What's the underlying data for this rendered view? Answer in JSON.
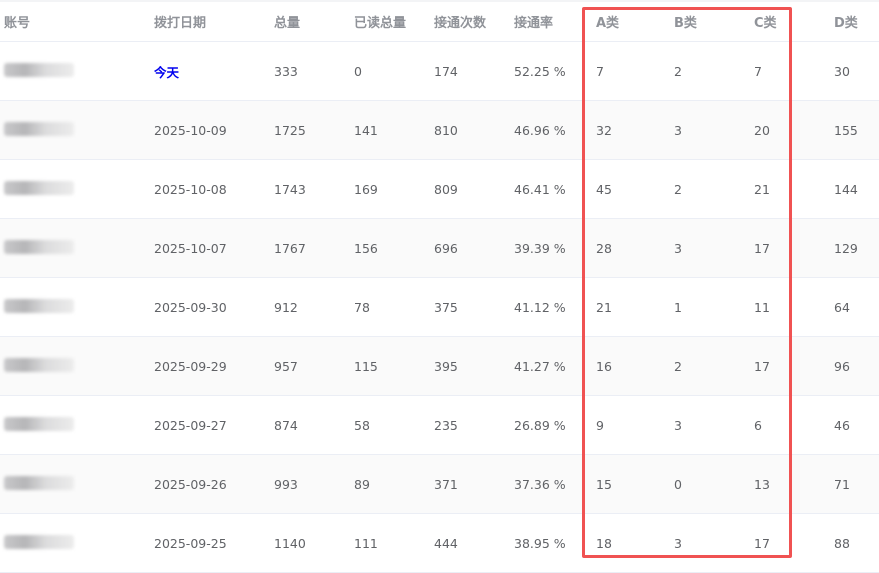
{
  "headers": [
    "账号",
    "拨打日期",
    "总量",
    "已读总量",
    "接通次数",
    "接通率",
    "A类",
    "B类",
    "C类",
    "D类"
  ],
  "rows": [
    {
      "date": "今天",
      "total": "333",
      "read": "0",
      "connected": "174",
      "rate": "52.25 %",
      "a": "7",
      "b": "2",
      "c": "7",
      "d": "30"
    },
    {
      "date": "2025-10-09",
      "total": "1725",
      "read": "141",
      "connected": "810",
      "rate": "46.96 %",
      "a": "32",
      "b": "3",
      "c": "20",
      "d": "155"
    },
    {
      "date": "2025-10-08",
      "total": "1743",
      "read": "169",
      "connected": "809",
      "rate": "46.41 %",
      "a": "45",
      "b": "2",
      "c": "21",
      "d": "144"
    },
    {
      "date": "2025-10-07",
      "total": "1767",
      "read": "156",
      "connected": "696",
      "rate": "39.39 %",
      "a": "28",
      "b": "3",
      "c": "17",
      "d": "129"
    },
    {
      "date": "2025-09-30",
      "total": "912",
      "read": "78",
      "connected": "375",
      "rate": "41.12 %",
      "a": "21",
      "b": "1",
      "c": "11",
      "d": "64"
    },
    {
      "date": "2025-09-29",
      "total": "957",
      "read": "115",
      "connected": "395",
      "rate": "41.27 %",
      "a": "16",
      "b": "2",
      "c": "17",
      "d": "96"
    },
    {
      "date": "2025-09-27",
      "total": "874",
      "read": "58",
      "connected": "235",
      "rate": "26.89 %",
      "a": "9",
      "b": "3",
      "c": "6",
      "d": "46"
    },
    {
      "date": "2025-09-26",
      "total": "993",
      "read": "89",
      "connected": "371",
      "rate": "37.36 %",
      "a": "15",
      "b": "0",
      "c": "13",
      "d": "71"
    },
    {
      "date": "2025-09-25",
      "total": "1140",
      "read": "111",
      "connected": "444",
      "rate": "38.95 %",
      "a": "18",
      "b": "3",
      "c": "17",
      "d": "88"
    }
  ],
  "colors": {
    "highlight": "#f05252",
    "today_link": "#0000ee"
  }
}
